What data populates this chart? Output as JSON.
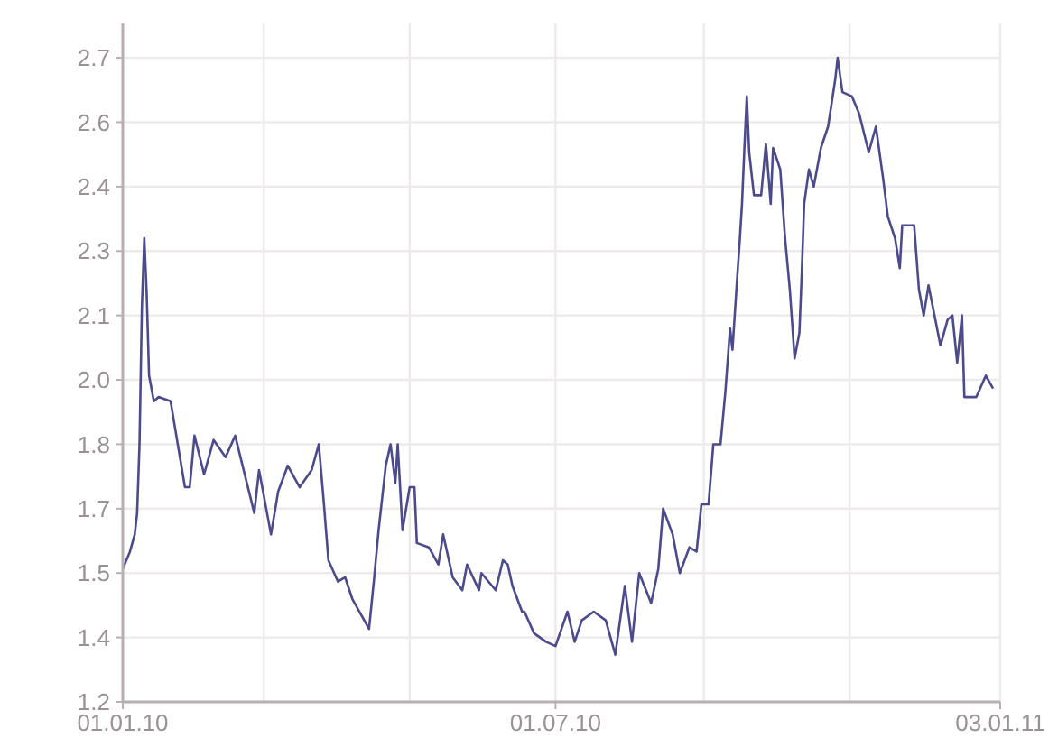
{
  "chart_data": {
    "type": "line",
    "x": [
      "2010-01-01",
      "2010-01-04",
      "2010-01-06",
      "2010-01-07",
      "2010-01-08",
      "2010-01-09",
      "2010-01-10",
      "2010-01-11",
      "2010-01-12",
      "2010-01-14",
      "2010-01-16",
      "2010-01-21",
      "2010-01-24",
      "2010-01-27",
      "2010-01-29",
      "2010-01-31",
      "2010-02-04",
      "2010-02-08",
      "2010-02-13",
      "2010-02-17",
      "2010-02-21",
      "2010-02-25",
      "2010-02-27",
      "2010-03-04",
      "2010-03-07",
      "2010-03-11",
      "2010-03-16",
      "2010-03-21",
      "2010-03-24",
      "2010-03-26",
      "2010-03-28",
      "2010-04-01",
      "2010-04-04",
      "2010-04-07",
      "2010-04-10",
      "2010-04-14",
      "2010-04-16",
      "2010-04-18",
      "2010-04-21",
      "2010-04-23",
      "2010-04-25",
      "2010-04-26",
      "2010-04-28",
      "2010-05-01",
      "2010-05-03",
      "2010-05-04",
      "2010-05-09",
      "2010-05-13",
      "2010-05-15",
      "2010-05-19",
      "2010-05-23",
      "2010-05-25",
      "2010-05-30",
      "2010-05-31",
      "2010-06-06",
      "2010-06-09",
      "2010-06-11",
      "2010-06-13",
      "2010-06-17",
      "2010-06-18",
      "2010-06-22",
      "2010-06-27",
      "2010-07-01",
      "2010-07-06",
      "2010-07-09",
      "2010-07-12",
      "2010-07-17",
      "2010-07-22",
      "2010-07-26",
      "2010-07-30",
      "2010-08-02",
      "2010-08-05",
      "2010-08-10",
      "2010-08-13",
      "2010-08-15",
      "2010-08-19",
      "2010-08-22",
      "2010-08-26",
      "2010-08-29",
      "2010-08-31",
      "2010-09-03",
      "2010-09-05",
      "2010-09-08",
      "2010-09-10",
      "2010-09-12",
      "2010-09-13",
      "2010-09-15",
      "2010-09-16",
      "2010-09-17",
      "2010-09-18",
      "2010-09-19",
      "2010-09-20",
      "2010-09-22",
      "2010-09-25",
      "2010-09-27",
      "2010-09-29",
      "2010-09-30",
      "2010-10-03",
      "2010-10-05",
      "2010-10-07",
      "2010-10-09",
      "2010-10-11",
      "2010-10-12",
      "2010-10-13",
      "2010-10-15",
      "2010-10-17",
      "2010-10-20",
      "2010-10-23",
      "2010-10-26",
      "2010-10-27",
      "2010-10-29",
      "2010-11-02",
      "2010-11-05",
      "2010-11-09",
      "2010-11-12",
      "2010-11-15",
      "2010-11-17",
      "2010-11-20",
      "2010-11-22",
      "2010-11-23",
      "2010-11-28",
      "2010-11-30",
      "2010-12-02",
      "2010-12-04",
      "2010-12-09",
      "2010-12-12",
      "2010-12-14",
      "2010-12-16",
      "2010-12-18",
      "2010-12-19",
      "2010-12-24",
      "2010-12-28",
      "2010-12-31"
    ],
    "series": [
      {
        "color": "#4b4a8c",
        "values": [
          1.51,
          1.55,
          1.59,
          1.64,
          1.8,
          2.12,
          2.28,
          2.15,
          1.96,
          1.9,
          1.91,
          1.9,
          1.8,
          1.7,
          1.7,
          1.82,
          1.73,
          1.81,
          1.77,
          1.82,
          1.73,
          1.64,
          1.74,
          1.59,
          1.69,
          1.75,
          1.7,
          1.74,
          1.8,
          1.67,
          1.53,
          1.48,
          1.49,
          1.44,
          1.41,
          1.37,
          1.48,
          1.6,
          1.75,
          1.8,
          1.71,
          1.8,
          1.6,
          1.7,
          1.7,
          1.57,
          1.56,
          1.52,
          1.59,
          1.49,
          1.46,
          1.52,
          1.46,
          1.5,
          1.46,
          1.53,
          1.52,
          1.47,
          1.41,
          1.41,
          1.36,
          1.34,
          1.33,
          1.41,
          1.34,
          1.39,
          1.41,
          1.39,
          1.31,
          1.47,
          1.34,
          1.5,
          1.43,
          1.51,
          1.65,
          1.59,
          1.5,
          1.56,
          1.55,
          1.66,
          1.66,
          1.8,
          1.8,
          1.92,
          2.07,
          2.02,
          2.19,
          2.27,
          2.36,
          2.49,
          2.61,
          2.48,
          2.38,
          2.38,
          2.5,
          2.36,
          2.49,
          2.44,
          2.28,
          2.16,
          2.0,
          2.06,
          2.2,
          2.36,
          2.44,
          2.4,
          2.49,
          2.54,
          2.65,
          2.7,
          2.62,
          2.61,
          2.57,
          2.48,
          2.54,
          2.42,
          2.33,
          2.28,
          2.21,
          2.31,
          2.31,
          2.16,
          2.1,
          2.17,
          2.03,
          2.09,
          2.1,
          1.99,
          2.1,
          1.91,
          1.91,
          1.96,
          1.93
        ]
      }
    ],
    "xlim": [
      "2010-01-01",
      "2011-01-03"
    ],
    "xticks": [
      {
        "value": "2010-01-01",
        "label": "01.01.10"
      },
      {
        "value": "2010-03-01",
        "label": null
      },
      {
        "value": "2010-05-01",
        "label": null
      },
      {
        "value": "2010-07-01",
        "label": "01.07.10"
      },
      {
        "value": "2010-09-01",
        "label": null
      },
      {
        "value": "2010-11-01",
        "label": null
      },
      {
        "value": "2011-01-03",
        "label": "03.01.11"
      }
    ],
    "ylim": [
      1.2,
      2.78
    ],
    "yticks": [
      1.2,
      {
        "value": 1.35,
        "label": "1.4"
      },
      1.5,
      {
        "value": 1.65,
        "label": "1.7"
      },
      1.8,
      {
        "value": 1.95,
        "label": "2.0"
      },
      2.1,
      {
        "value": 2.25,
        "label": "2.3"
      },
      2.4,
      {
        "value": 2.55,
        "label": "2.6"
      },
      2.7
    ],
    "grid": true,
    "marker": "none",
    "line_style": "solid"
  }
}
